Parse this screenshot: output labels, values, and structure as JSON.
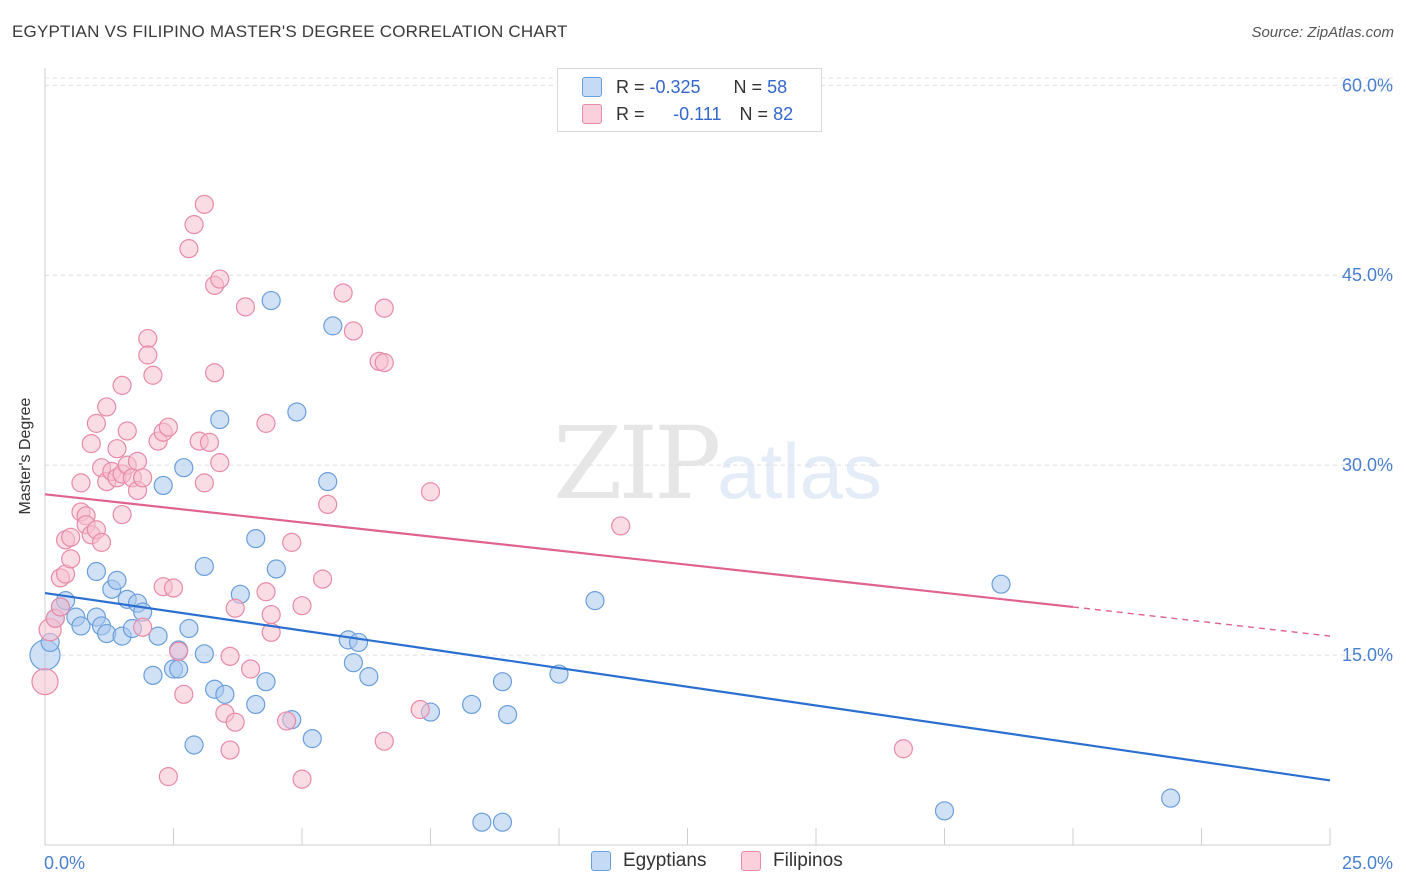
{
  "title": "EGYPTIAN VS FILIPINO MASTER'S DEGREE CORRELATION CHART",
  "source": "Source: ZipAtlas.com",
  "watermark": {
    "zip": "ZIP",
    "atlas": "atlas"
  },
  "legend": {
    "r_label": "R =",
    "n_label": "N =",
    "egyptians": {
      "r": "-0.325",
      "n": "58"
    },
    "filipinos": {
      "r": "-0.111",
      "n": "82"
    }
  },
  "colors": {
    "egypt_fill": "#aac8ee",
    "egypt_stroke": "#6a9edb",
    "egypt_line": "#2b6fd0",
    "filipino_fill": "#f6bfd0",
    "filipino_stroke": "#e88aa8",
    "filipino_line": "#e0628e",
    "axis_text": "#4a7fd0"
  },
  "chart_data": {
    "type": "scatter",
    "title": "EGYPTIAN VS FILIPINO MASTER'S DEGREE CORRELATION CHART",
    "xlabel": "",
    "ylabel": "Master's Degree",
    "xlim": [
      0,
      25
    ],
    "ylim": [
      0,
      62
    ],
    "x_tick_labels": [
      "0.0%",
      "25.0%"
    ],
    "y_ticks": [
      15,
      30,
      45,
      60
    ],
    "y_tick_labels": [
      "15.0%",
      "30.0%",
      "45.0%",
      "60.0%"
    ],
    "grid": true,
    "legend_position": "bottom-center",
    "series": [
      {
        "name": "Egyptians",
        "trend": {
          "x": [
            0,
            25
          ],
          "y": [
            19.9,
            5.1
          ],
          "extends_dashed_to": null
        },
        "points": [
          [
            0.0,
            15.0,
            15
          ],
          [
            0.1,
            16.0,
            9
          ],
          [
            0.2,
            17.9,
            9
          ],
          [
            0.3,
            18.8,
            9
          ],
          [
            0.4,
            19.3,
            9
          ],
          [
            0.6,
            18.0,
            9
          ],
          [
            0.7,
            17.3,
            9
          ],
          [
            1.0,
            18.0,
            9
          ],
          [
            1.0,
            21.6,
            9
          ],
          [
            1.1,
            17.3,
            9
          ],
          [
            1.2,
            16.7,
            9
          ],
          [
            1.3,
            20.2,
            9
          ],
          [
            1.4,
            20.9,
            9
          ],
          [
            1.5,
            16.5,
            9
          ],
          [
            1.6,
            19.4,
            9
          ],
          [
            1.7,
            17.1,
            9
          ],
          [
            1.8,
            19.1,
            9
          ],
          [
            1.9,
            18.4,
            9
          ],
          [
            2.1,
            13.4,
            9
          ],
          [
            2.2,
            16.5,
            9
          ],
          [
            2.3,
            28.4,
            9
          ],
          [
            2.5,
            13.9,
            9
          ],
          [
            2.6,
            13.9,
            9
          ],
          [
            2.6,
            15.4,
            9
          ],
          [
            2.7,
            29.8,
            9
          ],
          [
            2.8,
            17.1,
            9
          ],
          [
            2.9,
            7.9,
            9
          ],
          [
            3.1,
            22.0,
            9
          ],
          [
            3.1,
            15.1,
            9
          ],
          [
            3.3,
            12.3,
            9
          ],
          [
            3.5,
            11.9,
            9
          ],
          [
            3.8,
            19.8,
            9
          ],
          [
            4.1,
            24.2,
            9
          ],
          [
            4.1,
            11.1,
            9
          ],
          [
            4.3,
            12.9,
            9
          ],
          [
            4.4,
            43.0,
            9
          ],
          [
            4.5,
            21.8,
            9
          ],
          [
            4.8,
            9.9,
            9
          ],
          [
            4.9,
            34.2,
            9
          ],
          [
            5.2,
            8.4,
            9
          ],
          [
            5.5,
            28.7,
            9
          ],
          [
            5.6,
            41.0,
            9
          ],
          [
            5.9,
            16.2,
            9
          ],
          [
            6.0,
            14.4,
            9
          ],
          [
            6.1,
            16.0,
            9
          ],
          [
            6.3,
            13.3,
            9
          ],
          [
            7.5,
            10.5,
            9
          ],
          [
            8.3,
            11.1,
            9
          ],
          [
            8.9,
            12.9,
            9
          ],
          [
            8.5,
            1.8,
            9
          ],
          [
            8.9,
            1.8,
            9
          ],
          [
            9.0,
            10.3,
            9
          ],
          [
            10.0,
            13.5,
            9
          ],
          [
            10.7,
            19.3,
            9
          ],
          [
            3.4,
            33.6,
            9
          ],
          [
            18.6,
            20.6,
            9
          ],
          [
            17.5,
            2.7,
            9
          ],
          [
            21.9,
            3.7,
            9
          ]
        ]
      },
      {
        "name": "Filipinos",
        "trend": {
          "x": [
            0,
            20
          ],
          "y": [
            27.7,
            18.8
          ],
          "extends_dashed_to": [
            25,
            16.5
          ]
        },
        "points": [
          [
            0.0,
            12.9,
            13
          ],
          [
            0.1,
            17.0,
            11
          ],
          [
            0.2,
            17.9,
            9
          ],
          [
            0.3,
            18.8,
            9
          ],
          [
            0.3,
            21.1,
            9
          ],
          [
            0.4,
            21.4,
            9
          ],
          [
            0.4,
            24.1,
            9
          ],
          [
            0.5,
            22.6,
            9
          ],
          [
            0.5,
            24.3,
            9
          ],
          [
            0.7,
            26.3,
            9
          ],
          [
            0.8,
            26.0,
            9
          ],
          [
            0.8,
            25.3,
            9
          ],
          [
            0.7,
            28.6,
            9
          ],
          [
            0.9,
            24.5,
            9
          ],
          [
            0.9,
            31.7,
            9
          ],
          [
            1.0,
            24.9,
            9
          ],
          [
            1.0,
            33.3,
            9
          ],
          [
            1.1,
            23.9,
            9
          ],
          [
            1.1,
            29.8,
            9
          ],
          [
            1.2,
            28.7,
            9
          ],
          [
            1.2,
            34.6,
            9
          ],
          [
            1.3,
            29.5,
            9
          ],
          [
            1.4,
            31.3,
            9
          ],
          [
            1.4,
            29.0,
            9
          ],
          [
            1.5,
            29.3,
            9
          ],
          [
            1.5,
            26.1,
            9
          ],
          [
            1.5,
            36.3,
            9
          ],
          [
            1.6,
            30.0,
            9
          ],
          [
            1.6,
            32.7,
            9
          ],
          [
            1.7,
            29.0,
            9
          ],
          [
            1.8,
            30.3,
            9
          ],
          [
            1.8,
            28.0,
            9
          ],
          [
            1.9,
            29.0,
            9
          ],
          [
            2.0,
            40.0,
            9
          ],
          [
            2.0,
            38.7,
            9
          ],
          [
            2.1,
            37.1,
            9
          ],
          [
            2.2,
            31.9,
            9
          ],
          [
            2.3,
            32.6,
            9
          ],
          [
            2.3,
            20.4,
            9
          ],
          [
            2.4,
            33.0,
            9
          ],
          [
            2.4,
            5.4,
            9
          ],
          [
            2.5,
            20.3,
            9
          ],
          [
            2.6,
            15.3,
            9
          ],
          [
            2.7,
            11.9,
            9
          ],
          [
            2.8,
            47.1,
            9
          ],
          [
            2.9,
            49.0,
            9
          ],
          [
            3.0,
            31.9,
            9
          ],
          [
            3.1,
            50.6,
            9
          ],
          [
            3.1,
            28.6,
            9
          ],
          [
            3.2,
            31.8,
            9
          ],
          [
            3.3,
            44.2,
            9
          ],
          [
            3.3,
            37.3,
            9
          ],
          [
            3.4,
            44.7,
            9
          ],
          [
            3.4,
            30.2,
            9
          ],
          [
            3.5,
            10.4,
            9
          ],
          [
            3.6,
            7.5,
            9
          ],
          [
            3.6,
            14.9,
            9
          ],
          [
            3.7,
            9.7,
            9
          ],
          [
            3.7,
            18.7,
            9
          ],
          [
            3.9,
            42.5,
            9
          ],
          [
            4.0,
            13.9,
            9
          ],
          [
            4.3,
            20.0,
            9
          ],
          [
            4.3,
            33.3,
            9
          ],
          [
            4.4,
            16.8,
            9
          ],
          [
            4.4,
            18.2,
            9
          ],
          [
            4.7,
            9.8,
            9
          ],
          [
            4.8,
            23.9,
            9
          ],
          [
            5.0,
            18.9,
            9
          ],
          [
            5.0,
            5.2,
            9
          ],
          [
            5.4,
            21.0,
            9
          ],
          [
            5.5,
            26.9,
            9
          ],
          [
            5.8,
            43.6,
            9
          ],
          [
            6.0,
            40.6,
            9
          ],
          [
            6.6,
            42.4,
            9
          ],
          [
            6.5,
            38.2,
            9
          ],
          [
            6.6,
            38.1,
            9
          ],
          [
            6.6,
            8.2,
            9
          ],
          [
            7.3,
            10.7,
            9
          ],
          [
            7.5,
            27.9,
            9
          ],
          [
            11.2,
            25.2,
            9
          ],
          [
            16.7,
            7.6,
            9
          ],
          [
            1.9,
            17.2,
            9
          ]
        ]
      }
    ]
  }
}
